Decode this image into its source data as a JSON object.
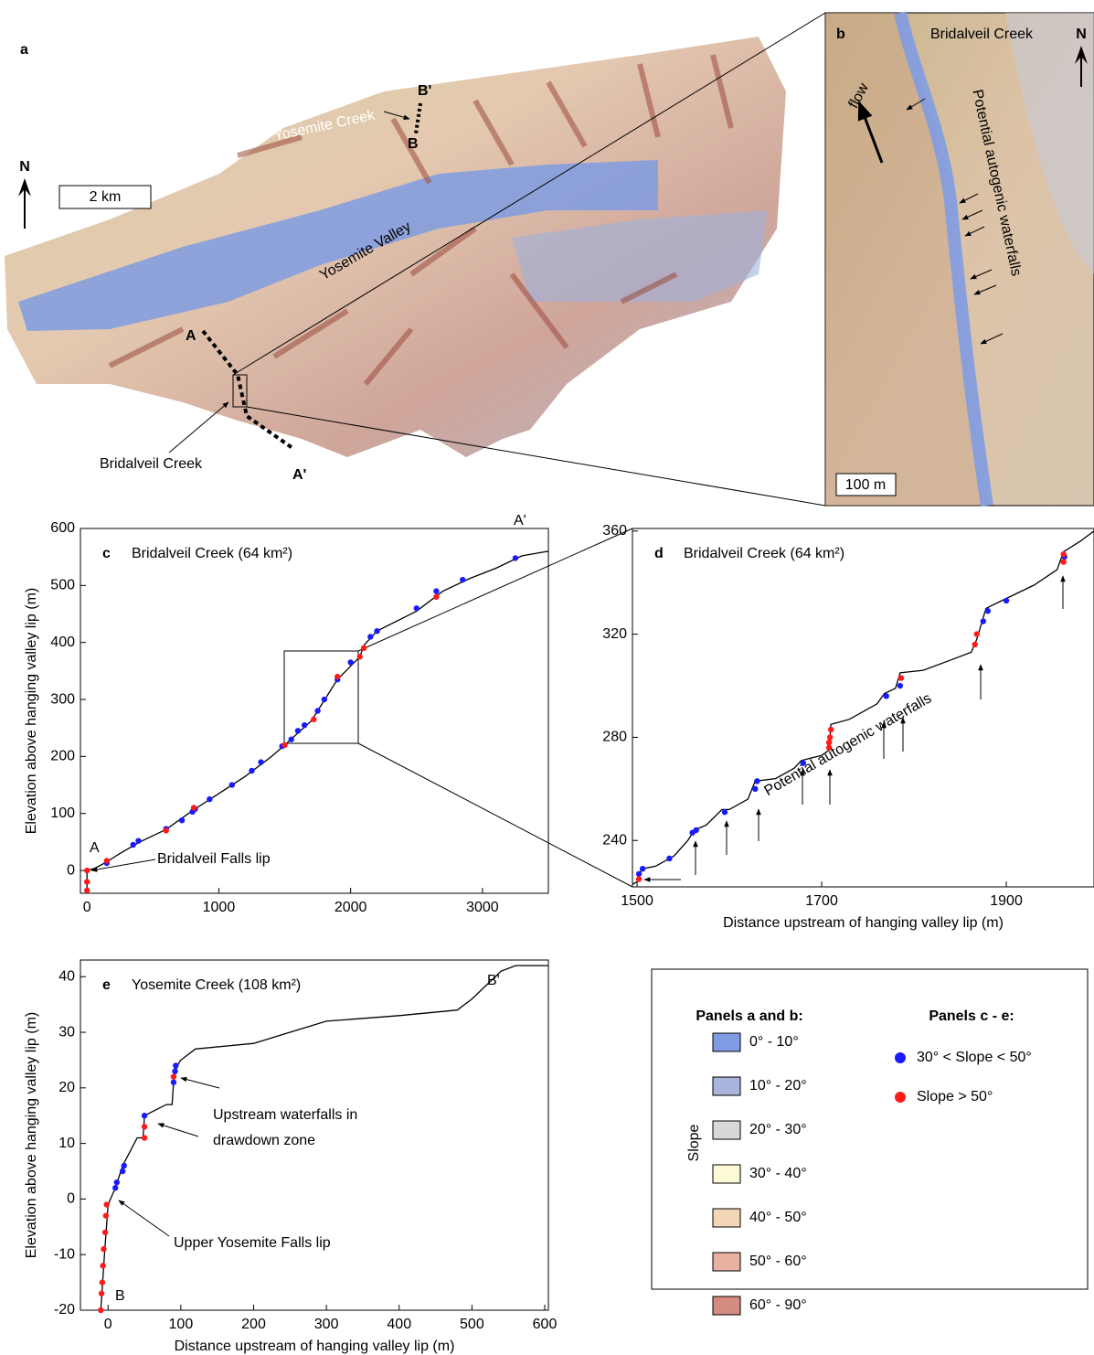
{
  "panel_a": {
    "label": "a",
    "north": "N",
    "scale_bar": "2 km",
    "labels": [
      "B'",
      "Yosemite Creek",
      "B",
      "Yosemite Valley",
      "A",
      "Bridalveil Creek",
      "A'"
    ]
  },
  "panel_b": {
    "label": "b",
    "title": "Bridalveil Creek",
    "north": "N",
    "flow": "flow",
    "annotation": "Potential autogenic waterfalls",
    "scale_bar": "100 m"
  },
  "chart_data": [
    {
      "type": "line",
      "panel": "c",
      "title": "Bridalveil Creek (64 km²)",
      "y_label": "Elevation above hanging valley lip (m)",
      "xlim": [
        -50,
        3500
      ],
      "ylim": [
        -40,
        600
      ],
      "xticks": [
        0,
        1000,
        2000,
        3000
      ],
      "yticks": [
        0,
        100,
        200,
        300,
        400,
        500,
        600
      ],
      "annotations": [
        "A",
        "A'",
        "Bridalveil Falls lip"
      ],
      "series": [
        {
          "type": "line",
          "color": "#000000",
          "x": [
            0,
            0,
            60,
            150,
            250,
            400,
            600,
            800,
            1000,
            1200,
            1400,
            1500,
            1700,
            1900,
            2070,
            2100,
            2200,
            2500,
            2700,
            2900,
            3100,
            3300,
            3500
          ],
          "values": [
            -40,
            0,
            4,
            15,
            30,
            50,
            72,
            105,
            135,
            165,
            200,
            220,
            262,
            335,
            375,
            395,
            420,
            455,
            490,
            512,
            530,
            552,
            560
          ]
        },
        {
          "type": "scatter",
          "color": "#1a1aff",
          "x": [
            150,
            350,
            390,
            600,
            720,
            800,
            820,
            930,
            1100,
            1250,
            1320,
            1480,
            1550,
            1600,
            1650,
            1750,
            1800,
            1900,
            2000,
            2150,
            2200,
            2500,
            2650,
            2850,
            3250
          ],
          "values": [
            13,
            45,
            52,
            73,
            88,
            103,
            108,
            125,
            150,
            175,
            190,
            218,
            230,
            245,
            255,
            280,
            300,
            335,
            365,
            410,
            420,
            460,
            490,
            510,
            548
          ]
        },
        {
          "type": "scatter",
          "color": "#ff1a1a",
          "x": [
            0,
            0,
            0,
            150,
            600,
            810,
            1500,
            1720,
            1900,
            2070,
            2100,
            2650
          ],
          "values": [
            0,
            -20,
            -35,
            17,
            70,
            110,
            220,
            265,
            340,
            375,
            390,
            480
          ]
        }
      ]
    },
    {
      "type": "line",
      "panel": "d",
      "title": "Bridalveil Creek (64 km²)",
      "x_label": "Distance upstream of hanging valley lip (m)",
      "xlim": [
        1495,
        1995
      ],
      "ylim": [
        222,
        361
      ],
      "xticks": [
        1500,
        1700,
        1900
      ],
      "yticks": [
        240,
        280,
        320,
        360
      ],
      "annotations": [
        "Potential autogenic waterfalls"
      ],
      "series": [
        {
          "type": "line",
          "color": "#000000",
          "x": [
            1495,
            1500,
            1505,
            1520,
            1540,
            1555,
            1562,
            1575,
            1592,
            1600,
            1620,
            1628,
            1650,
            1670,
            1678,
            1700,
            1708,
            1710,
            1730,
            1760,
            1768,
            1780,
            1785,
            1810,
            1840,
            1862,
            1868,
            1878,
            1895,
            1930,
            1955,
            1962,
            1980,
            1995
          ],
          "values": [
            223,
            224,
            229,
            230,
            234,
            240,
            244,
            246,
            252,
            252,
            256,
            263,
            264,
            268,
            271,
            273,
            275,
            285,
            287,
            293,
            297,
            299,
            305,
            306,
            310,
            313,
            318,
            330,
            333,
            339,
            345,
            352,
            356,
            360
          ]
        },
        {
          "type": "scatter",
          "color": "#1a1aff",
          "x": [
            1502,
            1506,
            1535,
            1560,
            1564,
            1595,
            1628,
            1630,
            1680,
            1770,
            1785,
            1875,
            1880,
            1900,
            1963
          ],
          "values": [
            227,
            229,
            233,
            243,
            244,
            251,
            260,
            263,
            270,
            296,
            300,
            325,
            329,
            333,
            350
          ]
        },
        {
          "type": "scatter",
          "color": "#ff1a1a",
          "x": [
            1502,
            1708,
            1708,
            1709,
            1710,
            1786,
            1866,
            1868,
            1962,
            1962
          ],
          "values": [
            225,
            276,
            278,
            280,
            283,
            303,
            316,
            320,
            348,
            351
          ]
        }
      ]
    },
    {
      "type": "line",
      "panel": "e",
      "title": "Yosemite Creek (108 km²)",
      "x_label": "Distance upstream of hanging valley lip (m)",
      "y_label": "Elevation above hanging valley lip (m)",
      "xlim": [
        -38,
        605
      ],
      "ylim": [
        -20,
        43
      ],
      "xticks": [
        0,
        100,
        200,
        300,
        400,
        500,
        600
      ],
      "yticks": [
        -20,
        -10,
        0,
        10,
        20,
        30,
        40
      ],
      "annotations": [
        "B",
        "B'",
        "Upstream waterfalls in",
        "drawdown zone",
        "Upper Yosemite Falls lip"
      ],
      "series": [
        {
          "type": "line",
          "color": "#000000",
          "x": [
            -10,
            -5,
            0,
            10,
            20,
            40,
            48,
            50,
            80,
            88,
            90,
            95,
            100,
            120,
            200,
            250,
            300,
            400,
            480,
            500,
            540,
            560,
            605
          ],
          "values": [
            -20,
            -10,
            -1,
            2,
            6,
            11,
            11,
            15,
            17,
            17,
            21,
            24,
            25,
            27,
            28,
            30,
            32,
            33,
            34,
            36,
            41,
            42,
            42
          ]
        },
        {
          "type": "scatter",
          "color": "#1a1aff",
          "x": [
            10,
            12,
            20,
            22,
            50,
            90,
            92,
            93
          ],
          "values": [
            2,
            3,
            5,
            6,
            15,
            21,
            23,
            24
          ]
        },
        {
          "type": "scatter",
          "color": "#ff1a1a",
          "x": [
            -10,
            -9,
            -8,
            -7,
            -6,
            -4,
            -3,
            -2,
            50,
            50,
            90
          ],
          "values": [
            -20,
            -17,
            -15,
            -12,
            -9,
            -6,
            -3,
            -1,
            11,
            13,
            22
          ]
        }
      ]
    }
  ],
  "legend": {
    "left_title": "Panels a and b:",
    "axis_label": "Slope",
    "classes": [
      {
        "label": "0° - 10°",
        "color": "#7f9ce2"
      },
      {
        "label": "10° - 20°",
        "color": "#a9b5dc"
      },
      {
        "label": "20° - 30°",
        "color": "#d8d8d8"
      },
      {
        "label": "30° - 40°",
        "color": "#fdfbd5"
      },
      {
        "label": "40° - 50°",
        "color": "#f3d6b6"
      },
      {
        "label": "50° - 60°",
        "color": "#e8b1a1"
      },
      {
        "label": "60° - 90°",
        "color": "#d38b82"
      }
    ],
    "right_title": "Panels c - e:",
    "markers": [
      {
        "label": "30° < Slope < 50°",
        "color": "#1a1aff"
      },
      {
        "label": "Slope > 50°",
        "color": "#ff1a1a"
      }
    ]
  }
}
